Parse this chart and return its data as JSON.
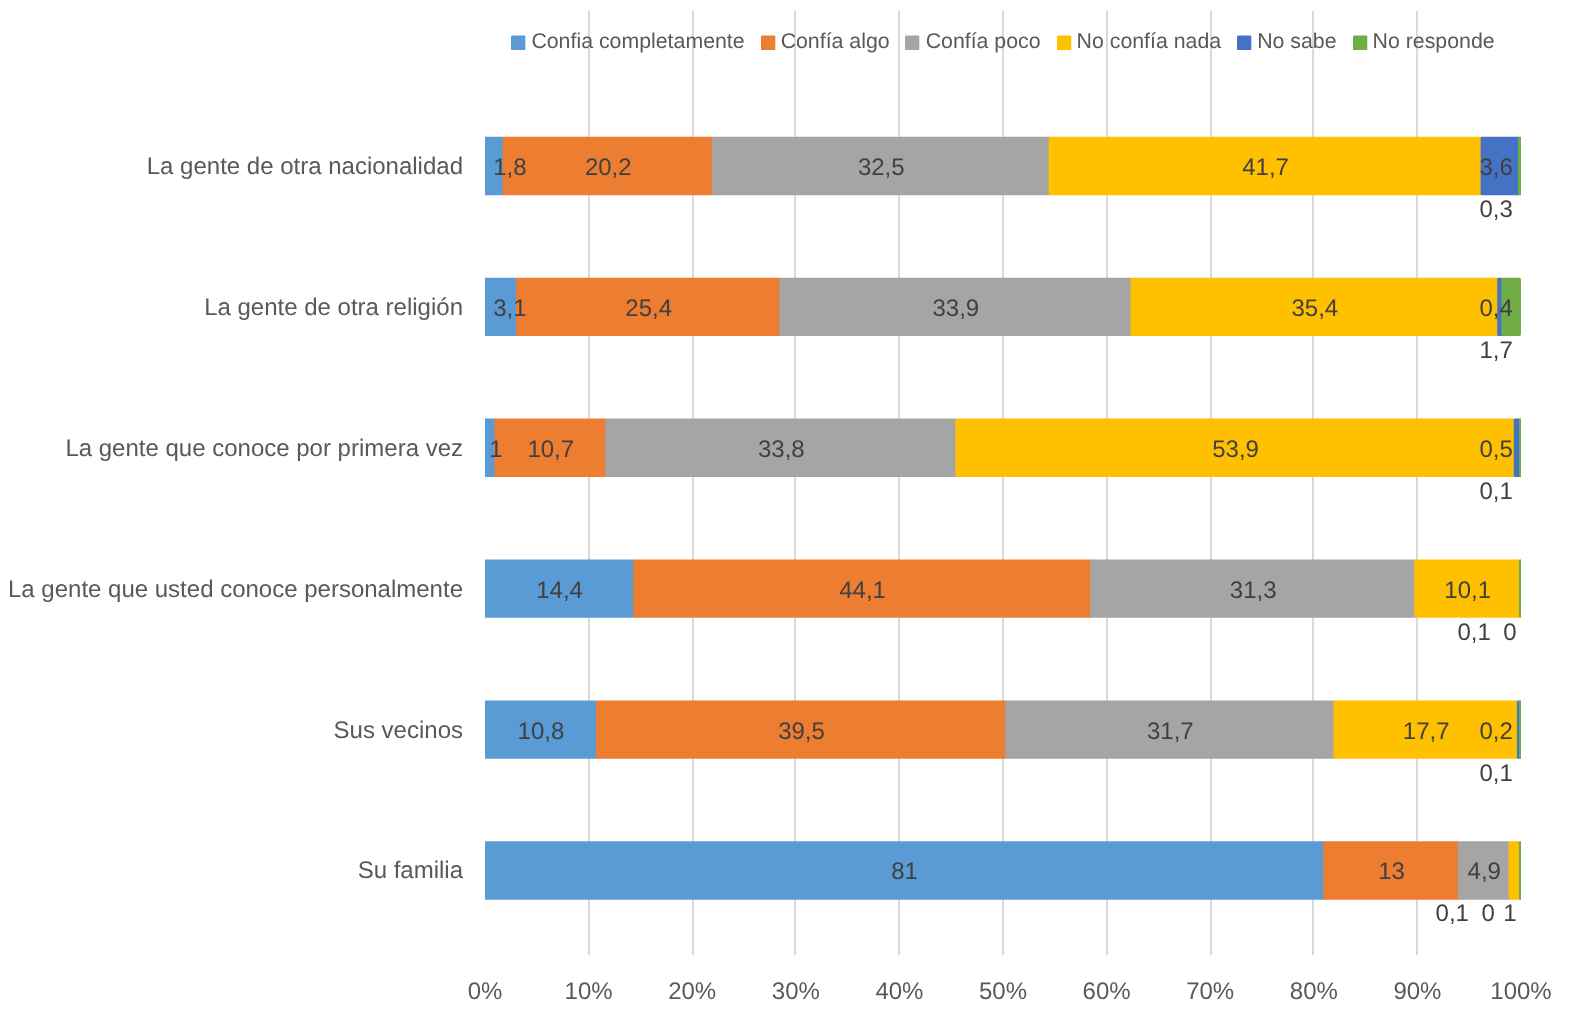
{
  "chart_data": {
    "type": "bar",
    "orientation": "horizontal",
    "stacked": true,
    "categories": [
      "La gente de otra nacionalidad",
      "La gente de otra religión",
      "La gente que conoce por primera vez",
      "La gente que usted conoce personalmente",
      "Sus vecinos",
      "Su familia"
    ],
    "series": [
      {
        "name": "Confia completamente",
        "color": "#5b9bd5",
        "values": [
          1.8,
          3.1,
          1,
          14.4,
          10.8,
          81
        ],
        "value_labels": [
          "1,8",
          "3,1",
          "1",
          "14,4",
          "10,8",
          "81"
        ]
      },
      {
        "name": "Confía algo",
        "color": "#ed7d31",
        "values": [
          20.2,
          25.4,
          10.7,
          44.1,
          39.5,
          13
        ],
        "value_labels": [
          "20,2",
          "25,4",
          "10,7",
          "44,1",
          "39,5",
          "13"
        ]
      },
      {
        "name": "Confía poco",
        "color": "#a5a5a5",
        "values": [
          32.5,
          33.9,
          33.8,
          31.3,
          31.7,
          4.9
        ],
        "value_labels": [
          "32,5",
          "33,9",
          "33,8",
          "31,3",
          "31,7",
          "4,9"
        ]
      },
      {
        "name": "No confía nada",
        "color": "#ffc000",
        "values": [
          41.7,
          35.4,
          53.9,
          10.1,
          17.7,
          1
        ],
        "value_labels": [
          "41,7",
          "35,4",
          "53,9",
          "10,1",
          "17,7",
          "1"
        ]
      },
      {
        "name": "No sabe",
        "color": "#4472c4",
        "values": [
          3.6,
          0.4,
          0.5,
          0,
          0.2,
          0
        ],
        "value_labels": [
          "3,6",
          "0,4",
          "0,5",
          "0",
          "0,2",
          "0"
        ]
      },
      {
        "name": "No responde",
        "color": "#70ad47",
        "values": [
          0.3,
          1.7,
          0.1,
          0.1,
          0.1,
          0.1
        ],
        "value_labels": [
          "0,3",
          "1,7",
          "0,1",
          "0,1",
          "0,1",
          "0,1"
        ]
      }
    ],
    "xlim": [
      0,
      100
    ],
    "xticks": [
      {
        "value": 0,
        "label": "0%"
      },
      {
        "value": 10,
        "label": "10%"
      },
      {
        "value": 20,
        "label": "20%"
      },
      {
        "value": 30,
        "label": "30%"
      },
      {
        "value": 40,
        "label": "40%"
      },
      {
        "value": 50,
        "label": "50%"
      },
      {
        "value": 60,
        "label": "60%"
      },
      {
        "value": 70,
        "label": "70%"
      },
      {
        "value": 80,
        "label": "80%"
      },
      {
        "value": 90,
        "label": "90%"
      },
      {
        "value": 100,
        "label": "100%"
      }
    ],
    "grid": "x",
    "legend": "top"
  }
}
